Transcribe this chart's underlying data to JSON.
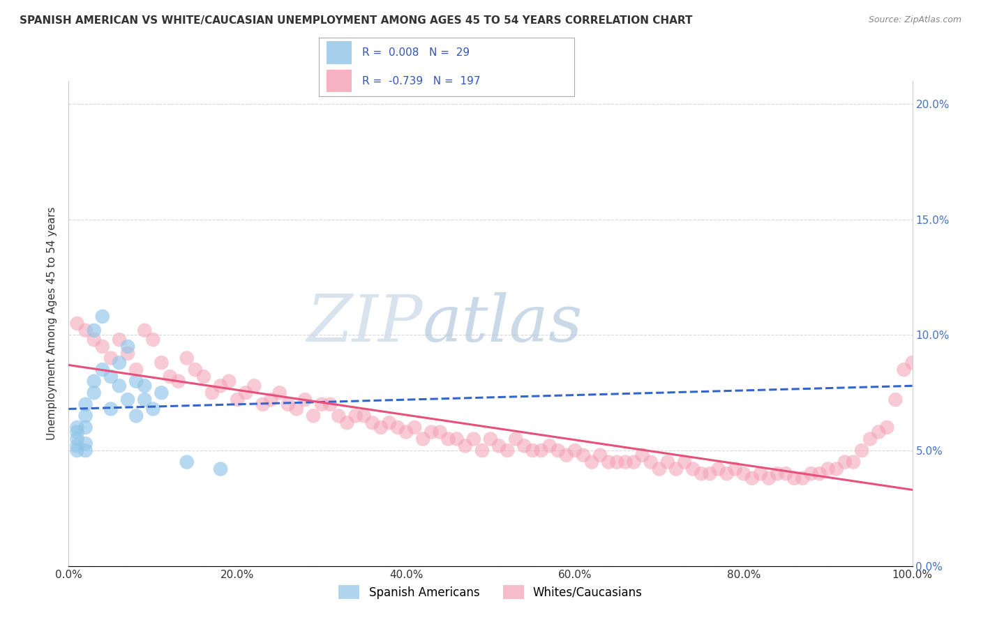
{
  "title": "SPANISH AMERICAN VS WHITE/CAUCASIAN UNEMPLOYMENT AMONG AGES 45 TO 54 YEARS CORRELATION CHART",
  "source": "Source: ZipAtlas.com",
  "ylabel": "Unemployment Among Ages 45 to 54 years",
  "xlim": [
    0,
    100
  ],
  "ylim": [
    0,
    21
  ],
  "ytick_labels": [
    "0.0%",
    "5.0%",
    "10.0%",
    "15.0%",
    "20.0%"
  ],
  "ytick_vals": [
    0,
    5,
    10,
    15,
    20
  ],
  "xtick_labels": [
    "0.0%",
    "20.0%",
    "40.0%",
    "60.0%",
    "80.0%",
    "100.0%"
  ],
  "xtick_vals": [
    0,
    20,
    40,
    60,
    80,
    100
  ],
  "blue_color": "#90c4e8",
  "pink_color": "#f4a0b5",
  "blue_line_color": "#3366cc",
  "pink_line_color": "#e8507a",
  "blue_scatter_x": [
    1,
    1,
    1,
    1,
    1,
    2,
    2,
    2,
    2,
    2,
    3,
    3,
    3,
    4,
    4,
    5,
    5,
    6,
    6,
    7,
    7,
    8,
    8,
    9,
    9,
    10,
    11,
    14,
    18
  ],
  "blue_scatter_y": [
    5.0,
    5.2,
    5.5,
    5.8,
    6.0,
    5.0,
    5.3,
    6.0,
    6.5,
    7.0,
    7.5,
    8.0,
    10.2,
    8.5,
    10.8,
    6.8,
    8.2,
    7.8,
    8.8,
    7.2,
    9.5,
    6.5,
    8.0,
    7.2,
    7.8,
    6.8,
    7.5,
    4.5,
    4.2
  ],
  "pink_scatter_x": [
    1,
    2,
    3,
    4,
    5,
    6,
    7,
    8,
    9,
    10,
    11,
    12,
    13,
    14,
    15,
    16,
    17,
    18,
    19,
    20,
    21,
    22,
    23,
    24,
    25,
    26,
    27,
    28,
    29,
    30,
    31,
    32,
    33,
    34,
    35,
    36,
    37,
    38,
    39,
    40,
    41,
    42,
    43,
    44,
    45,
    46,
    47,
    48,
    49,
    50,
    51,
    52,
    53,
    54,
    55,
    56,
    57,
    58,
    59,
    60,
    61,
    62,
    63,
    64,
    65,
    66,
    67,
    68,
    69,
    70,
    71,
    72,
    73,
    74,
    75,
    76,
    77,
    78,
    79,
    80,
    81,
    82,
    83,
    84,
    85,
    86,
    87,
    88,
    89,
    90,
    91,
    92,
    93,
    94,
    95,
    96,
    97,
    98,
    99,
    100
  ],
  "pink_scatter_y": [
    10.5,
    10.2,
    9.8,
    9.5,
    9.0,
    9.8,
    9.2,
    8.5,
    10.2,
    9.8,
    8.8,
    8.2,
    8.0,
    9.0,
    8.5,
    8.2,
    7.5,
    7.8,
    8.0,
    7.2,
    7.5,
    7.8,
    7.0,
    7.2,
    7.5,
    7.0,
    6.8,
    7.2,
    6.5,
    7.0,
    7.0,
    6.5,
    6.2,
    6.5,
    6.5,
    6.2,
    6.0,
    6.2,
    6.0,
    5.8,
    6.0,
    5.5,
    5.8,
    5.8,
    5.5,
    5.5,
    5.2,
    5.5,
    5.0,
    5.5,
    5.2,
    5.0,
    5.5,
    5.2,
    5.0,
    5.0,
    5.2,
    5.0,
    4.8,
    5.0,
    4.8,
    4.5,
    4.8,
    4.5,
    4.5,
    4.5,
    4.5,
    4.8,
    4.5,
    4.2,
    4.5,
    4.2,
    4.5,
    4.2,
    4.0,
    4.0,
    4.2,
    4.0,
    4.2,
    4.0,
    3.8,
    4.0,
    3.8,
    4.0,
    4.0,
    3.8,
    3.8,
    4.0,
    4.0,
    4.2,
    4.2,
    4.5,
    4.5,
    5.0,
    5.5,
    5.8,
    6.0,
    7.2,
    8.5,
    8.8
  ],
  "legend_blue_R": "0.008",
  "legend_blue_N": "29",
  "legend_pink_R": "-0.739",
  "legend_pink_N": "197",
  "legend_label_blue": "Spanish Americans",
  "legend_label_pink": "Whites/Caucasians",
  "watermark_ZIP": "ZIP",
  "watermark_atlas": "atlas",
  "blue_trend_x": [
    0,
    100
  ],
  "blue_trend_y": [
    6.8,
    7.8
  ],
  "pink_trend_x": [
    0,
    100
  ],
  "pink_trend_y": [
    8.7,
    3.3
  ],
  "background_color": "#ffffff",
  "grid_color": "#d8d8d8",
  "right_tick_color": "#4472c4",
  "text_color": "#333333",
  "legend_text_color": "#3355bb"
}
